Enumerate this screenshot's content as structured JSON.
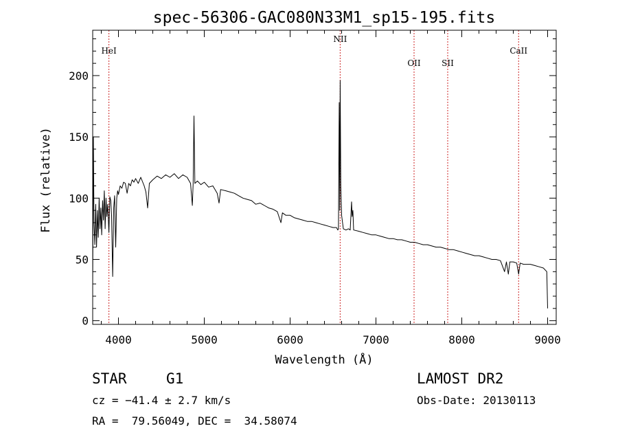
{
  "chart_data": {
    "type": "line",
    "title": "spec-56306-GAC080N33M1_sp15-195.fits",
    "xlabel": "Wavelength (Å)",
    "ylabel": "Flux (relative)",
    "xlim": [
      3700,
      9100
    ],
    "ylim": [
      -3,
      237
    ],
    "xticks": [
      4000,
      5000,
      6000,
      7000,
      8000,
      9000
    ],
    "yticks": [
      0,
      50,
      100,
      150,
      200
    ],
    "grid": false,
    "line_color": "#000000",
    "marker_color": "#cc2222",
    "lines": [
      {
        "label": "HeI",
        "wavelength": 3889
      },
      {
        "label": "NII",
        "wavelength": 6583
      },
      {
        "label": "OII",
        "wavelength": 7444
      },
      {
        "label": "SII",
        "wavelength": 7836
      },
      {
        "label": "CaII",
        "wavelength": 8662
      }
    ],
    "series": [
      {
        "values": [
          [
            3700,
            30
          ],
          [
            3708,
            150
          ],
          [
            3715,
            80
          ],
          [
            3725,
            62
          ],
          [
            3735,
            95
          ],
          [
            3745,
            60
          ],
          [
            3755,
            90
          ],
          [
            3765,
            68
          ],
          [
            3775,
            100
          ],
          [
            3785,
            75
          ],
          [
            3795,
            92
          ],
          [
            3805,
            70
          ],
          [
            3815,
            98
          ],
          [
            3825,
            82
          ],
          [
            3835,
            106
          ],
          [
            3845,
            75
          ],
          [
            3855,
            100
          ],
          [
            3865,
            85
          ],
          [
            3875,
            95
          ],
          [
            3889,
            72
          ],
          [
            3900,
            101
          ],
          [
            3910,
            98
          ],
          [
            3920,
            86
          ],
          [
            3933,
            36
          ],
          [
            3945,
            92
          ],
          [
            3955,
            102
          ],
          [
            3968,
            60
          ],
          [
            3980,
            100
          ],
          [
            3990,
            106
          ],
          [
            4000,
            103
          ],
          [
            4020,
            110
          ],
          [
            4040,
            108
          ],
          [
            4060,
            113
          ],
          [
            4080,
            112
          ],
          [
            4101,
            104
          ],
          [
            4120,
            112
          ],
          [
            4140,
            110
          ],
          [
            4160,
            115
          ],
          [
            4180,
            113
          ],
          [
            4200,
            116
          ],
          [
            4230,
            112
          ],
          [
            4260,
            117
          ],
          [
            4300,
            110
          ],
          [
            4320,
            105
          ],
          [
            4340,
            92
          ],
          [
            4360,
            112
          ],
          [
            4400,
            115
          ],
          [
            4450,
            118
          ],
          [
            4500,
            116
          ],
          [
            4550,
            119
          ],
          [
            4600,
            117
          ],
          [
            4650,
            120
          ],
          [
            4700,
            116
          ],
          [
            4750,
            119
          ],
          [
            4800,
            117
          ],
          [
            4840,
            112
          ],
          [
            4861,
            94
          ],
          [
            4870,
            112
          ],
          [
            4880,
            167
          ],
          [
            4890,
            112
          ],
          [
            4920,
            114
          ],
          [
            4960,
            111
          ],
          [
            5000,
            113
          ],
          [
            5050,
            109
          ],
          [
            5100,
            110
          ],
          [
            5150,
            104
          ],
          [
            5172,
            96
          ],
          [
            5190,
            107
          ],
          [
            5250,
            106
          ],
          [
            5300,
            105
          ],
          [
            5350,
            104
          ],
          [
            5400,
            102
          ],
          [
            5450,
            100
          ],
          [
            5500,
            99
          ],
          [
            5550,
            98
          ],
          [
            5600,
            95
          ],
          [
            5650,
            96
          ],
          [
            5700,
            94
          ],
          [
            5750,
            92
          ],
          [
            5800,
            91
          ],
          [
            5850,
            89
          ],
          [
            5893,
            80
          ],
          [
            5910,
            88
          ],
          [
            5950,
            86
          ],
          [
            6000,
            86
          ],
          [
            6050,
            84
          ],
          [
            6100,
            83
          ],
          [
            6150,
            82
          ],
          [
            6200,
            81
          ],
          [
            6250,
            81
          ],
          [
            6300,
            80
          ],
          [
            6350,
            79
          ],
          [
            6400,
            78
          ],
          [
            6450,
            77
          ],
          [
            6500,
            76
          ],
          [
            6540,
            76
          ],
          [
            6556,
            74
          ],
          [
            6563,
            75
          ],
          [
            6572,
            178
          ],
          [
            6578,
            90
          ],
          [
            6583,
            196
          ],
          [
            6590,
            110
          ],
          [
            6600,
            86
          ],
          [
            6620,
            75
          ],
          [
            6650,
            74
          ],
          [
            6680,
            75
          ],
          [
            6700,
            74
          ],
          [
            6716,
            97
          ],
          [
            6722,
            85
          ],
          [
            6731,
            90
          ],
          [
            6740,
            74
          ],
          [
            6800,
            73
          ],
          [
            6850,
            72
          ],
          [
            6900,
            71
          ],
          [
            6950,
            70
          ],
          [
            7000,
            70
          ],
          [
            7050,
            69
          ],
          [
            7100,
            68
          ],
          [
            7150,
            67
          ],
          [
            7200,
            67
          ],
          [
            7250,
            66
          ],
          [
            7300,
            66
          ],
          [
            7350,
            65
          ],
          [
            7400,
            64
          ],
          [
            7450,
            64
          ],
          [
            7500,
            63
          ],
          [
            7550,
            62
          ],
          [
            7600,
            62
          ],
          [
            7650,
            61
          ],
          [
            7700,
            60
          ],
          [
            7750,
            60
          ],
          [
            7800,
            59
          ],
          [
            7850,
            58
          ],
          [
            7900,
            58
          ],
          [
            7950,
            57
          ],
          [
            8000,
            56
          ],
          [
            8050,
            55
          ],
          [
            8100,
            54
          ],
          [
            8150,
            53
          ],
          [
            8200,
            53
          ],
          [
            8250,
            52
          ],
          [
            8300,
            51
          ],
          [
            8350,
            50
          ],
          [
            8400,
            50
          ],
          [
            8450,
            49
          ],
          [
            8498,
            40
          ],
          [
            8520,
            48
          ],
          [
            8542,
            38
          ],
          [
            8560,
            48
          ],
          [
            8600,
            48
          ],
          [
            8640,
            47
          ],
          [
            8662,
            38
          ],
          [
            8680,
            47
          ],
          [
            8720,
            46
          ],
          [
            8760,
            46
          ],
          [
            8800,
            46
          ],
          [
            8850,
            45
          ],
          [
            8900,
            44
          ],
          [
            8950,
            43
          ],
          [
            8990,
            40
          ],
          [
            9000,
            10
          ]
        ]
      }
    ]
  },
  "footer": {
    "object_class": "STAR",
    "subclass": "G1",
    "survey": "LAMOST DR2",
    "redshift": "cz = −41.4 ± 2.7 km/s",
    "obs_date": "Obs-Date: 20130113",
    "coords": "RA =  79.56049, DEC =  34.58074"
  }
}
